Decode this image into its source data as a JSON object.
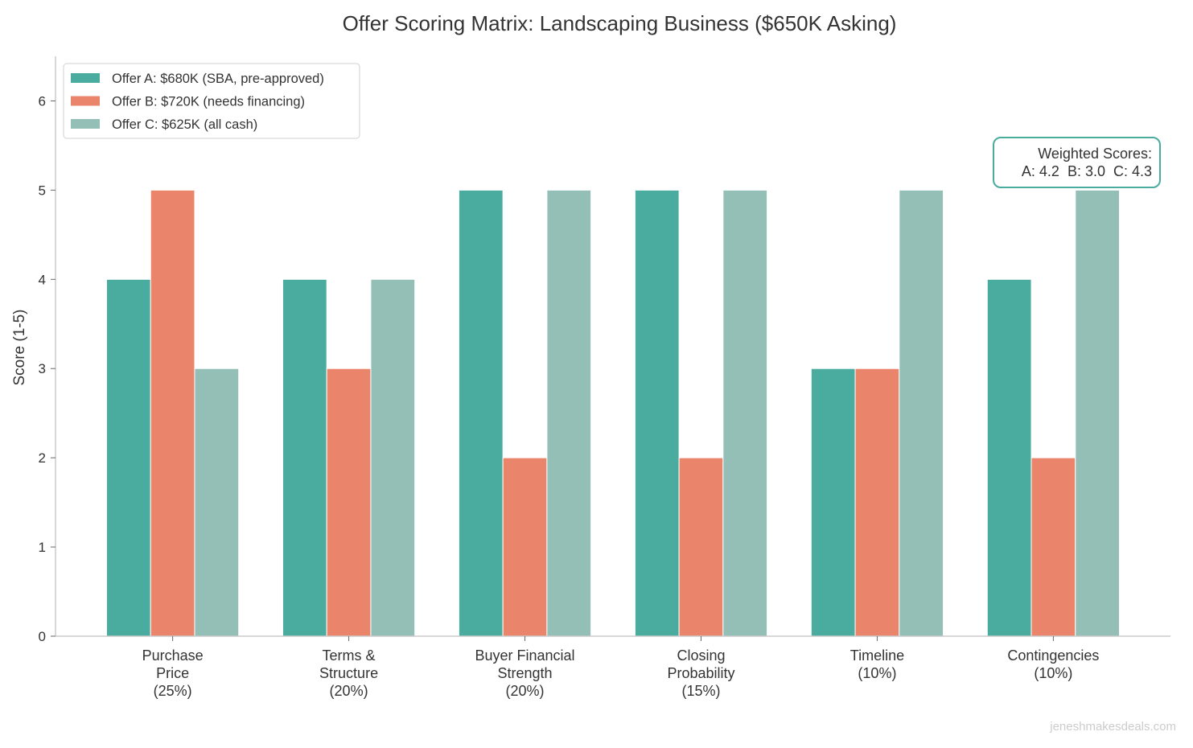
{
  "chart_data": {
    "type": "bar",
    "title": "Offer Scoring Matrix: Landscaping Business ($650K Asking)",
    "xlabel": "",
    "ylabel": "Score (1-5)",
    "ylim": [
      0,
      6.5
    ],
    "yticks": [
      0,
      1,
      2,
      3,
      4,
      5,
      6
    ],
    "grid": false,
    "legend_position": "top-left",
    "categories": [
      [
        "Purchase",
        "Price",
        "(25%)"
      ],
      [
        "Terms &",
        "Structure",
        "(20%)"
      ],
      [
        "Buyer Financial",
        "Strength",
        "(20%)"
      ],
      [
        "Closing",
        "Probability",
        "(15%)"
      ],
      [
        "Timeline",
        "(10%)"
      ],
      [
        "Contingencies",
        "(10%)"
      ]
    ],
    "series": [
      {
        "name": "Offer A: $680K (SBA, pre-approved)",
        "color": "#4aab9f",
        "values": [
          4,
          4,
          5,
          5,
          3,
          4
        ]
      },
      {
        "name": "Offer B: $720K (needs financing)",
        "color": "#ea856c",
        "values": [
          5,
          3,
          2,
          2,
          3,
          2
        ]
      },
      {
        "name": "Offer C: $625K (all cash)",
        "color": "#93bfb7",
        "values": [
          3,
          4,
          5,
          5,
          5,
          5
        ]
      }
    ],
    "annotation": {
      "lines": [
        "Weighted Scores:",
        "A: 4.2  B: 3.0  C: 4.3"
      ],
      "border_color": "#4aab9f"
    },
    "watermark": "jeneshmakesdeals.com"
  }
}
